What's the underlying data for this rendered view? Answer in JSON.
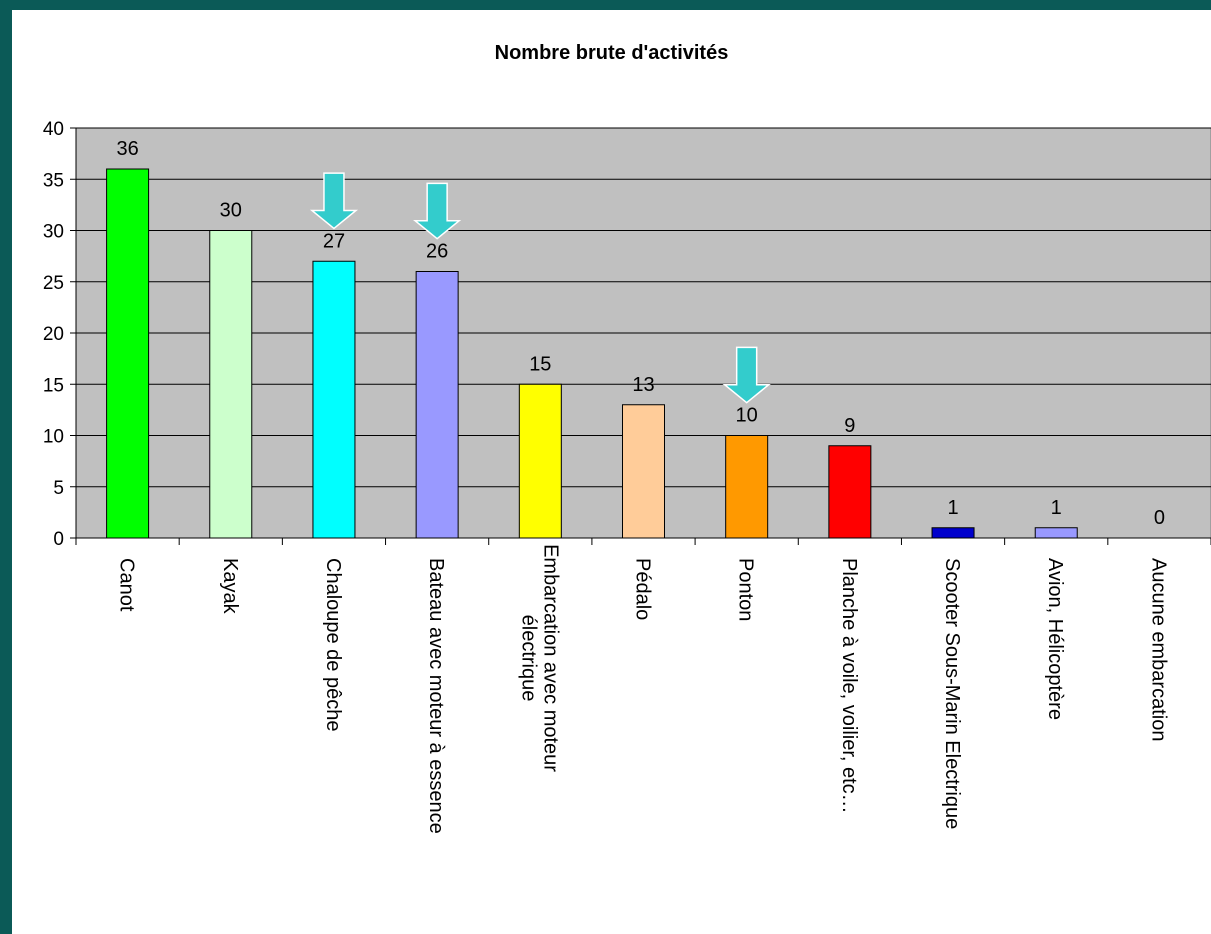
{
  "chart_data": {
    "type": "bar",
    "title": "Nombre brute d'activités",
    "xlabel": "",
    "ylabel": "",
    "ylim": [
      0,
      40
    ],
    "yticks": [
      0,
      5,
      10,
      15,
      20,
      25,
      30,
      35,
      40
    ],
    "grid": true,
    "legend": "none",
    "categories": [
      [
        "Canot"
      ],
      [
        "Kayak"
      ],
      [
        "Chaloupe de pêche"
      ],
      [
        "Bateau avec moteur à essence"
      ],
      [
        "Embarcation avec moteur",
        "électrique"
      ],
      [
        "Pédalo"
      ],
      [
        "Ponton"
      ],
      [
        "Planche à voile, voilier, etc…"
      ],
      [
        "Scooter Sous-Marin Electrique"
      ],
      [
        "Avion, Hélicoptère"
      ],
      [
        "Aucune embarcation"
      ]
    ],
    "values": [
      36,
      30,
      27,
      26,
      15,
      13,
      10,
      9,
      1,
      1,
      0
    ],
    "data_labels": [
      "36",
      "30",
      "27",
      "26",
      "15",
      "13",
      "10",
      "9",
      "1",
      "1",
      "0"
    ],
    "colors": [
      "#00ff00",
      "#ccffcc",
      "#00ffff",
      "#9999ff",
      "#ffff00",
      "#ffcc99",
      "#ff9900",
      "#ff0000",
      "#0000cc",
      "#9999ff",
      "#ffffff"
    ],
    "plot_background": "#c0c0c0",
    "highlight_arrows": {
      "categories": [
        2,
        3,
        6
      ],
      "color": "#33cccc"
    }
  }
}
